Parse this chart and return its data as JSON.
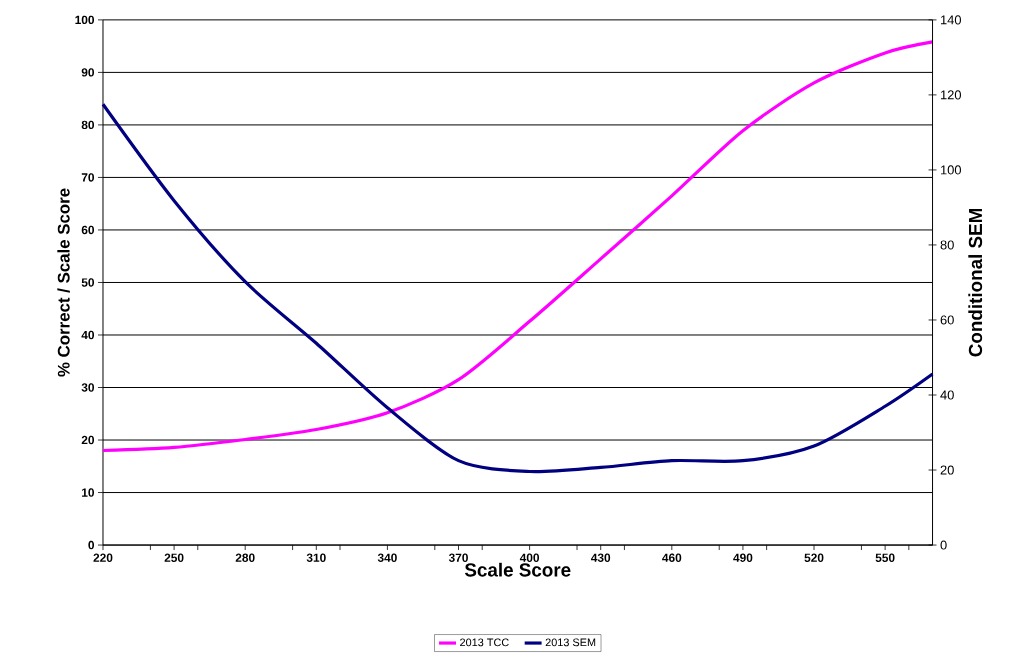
{
  "chart_data": {
    "type": "line",
    "xlabel": "Scale Score",
    "ylabel": "% Correct / Scale Score",
    "y2label": "Conditional SEM",
    "x": [
      220,
      250,
      280,
      310,
      340,
      370,
      400,
      430,
      460,
      490,
      520,
      550,
      570
    ],
    "series": [
      {
        "name": "2013 TCC",
        "color": "#ff00ff",
        "values": [
          18,
          18.6,
          20.1,
          22,
          25.2,
          31.5,
          42.6,
          54.5,
          66.5,
          78.9,
          88,
          93.7,
          95.8
        ]
      },
      {
        "name": "2013 SEM",
        "color": "#000080",
        "axis": "y2",
        "values": [
          117.5,
          91.8,
          70.2,
          53.8,
          36.6,
          22.5,
          19.6,
          20.7,
          22.5,
          22.5,
          26.4,
          37,
          45.6
        ]
      }
    ],
    "xlim": [
      220,
      570
    ],
    "xticks": [
      220,
      {
        "value": 240,
        "label": null
      },
      250,
      {
        "value": 260,
        "label": null
      },
      280,
      {
        "value": 300,
        "label": null
      },
      310,
      {
        "value": 320,
        "label": null
      },
      340,
      {
        "value": 360,
        "label": null
      },
      370,
      {
        "value": 380,
        "label": null
      },
      400,
      {
        "value": 420,
        "label": null
      },
      430,
      {
        "value": 440,
        "label": null
      },
      460,
      {
        "value": 480,
        "label": null
      },
      490,
      {
        "value": 500,
        "label": null
      },
      520,
      {
        "value": 540,
        "label": null
      },
      550,
      {
        "value": 560,
        "label": null
      }
    ],
    "ylim": [
      0,
      100
    ],
    "yticks": [
      0,
      10,
      20,
      30,
      40,
      50,
      60,
      70,
      80,
      90,
      100
    ],
    "y2lim": [
      0,
      140
    ],
    "y2ticks": [
      0,
      20,
      40,
      60,
      80,
      100,
      120,
      140
    ],
    "grid": "y",
    "legend": "bottom",
    "marker": "none",
    "line_style": "solid"
  }
}
